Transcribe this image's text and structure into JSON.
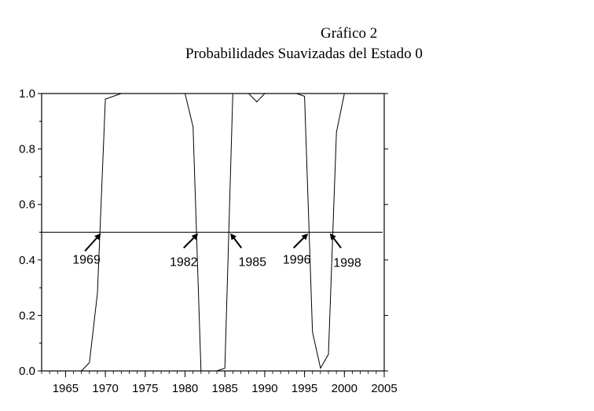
{
  "chart_data": {
    "type": "line",
    "title": "Gráfico 2",
    "subtitle": "Probabilidades Suavizadas del Estado 0",
    "xlabel": "",
    "ylabel": "",
    "xlim": [
      1962,
      2005
    ],
    "ylim": [
      0.0,
      1.0
    ],
    "x_ticks": [
      "1965",
      "1970",
      "1975",
      "1980",
      "1985",
      "1990",
      "1995",
      "2000",
      "2005"
    ],
    "y_ticks": [
      "0.0",
      "0.2",
      "0.4",
      "0.6",
      "0.8",
      "1.0"
    ],
    "grid": false,
    "legend": "none",
    "reference_line": {
      "y": 0.5
    },
    "series": [
      {
        "x": [
          1962,
          1963,
          1964,
          1965,
          1966,
          1967,
          1968,
          1969,
          1970,
          1971,
          1972,
          1973,
          1974,
          1975,
          1976,
          1977,
          1978,
          1979,
          1980,
          1981,
          1982,
          1983,
          1984,
          1985,
          1986,
          1987,
          1988,
          1989,
          1990,
          1991,
          1992,
          1993,
          1994,
          1995,
          1996,
          1997,
          1998,
          1999,
          2000,
          2001,
          2002,
          2003,
          2004,
          2005
        ],
        "values": [
          0.0,
          0.0,
          0.0,
          0.0,
          0.0,
          0.0,
          0.03,
          0.28,
          0.98,
          0.99,
          1.0,
          1.0,
          1.0,
          1.0,
          1.0,
          1.0,
          1.0,
          1.0,
          1.0,
          0.88,
          0.0,
          0.0,
          0.0,
          0.01,
          1.0,
          1.0,
          1.0,
          0.97,
          1.0,
          1.0,
          1.0,
          1.0,
          1.0,
          0.99,
          0.14,
          0.01,
          0.06,
          0.86,
          1.0,
          1.0,
          1.0,
          1.0,
          1.0,
          1.0
        ]
      }
    ],
    "annotations": [
      {
        "label": "1969",
        "x": 1969.6,
        "y": 0.5
      },
      {
        "label": "1982",
        "x": 1981.8,
        "y": 0.5
      },
      {
        "label": "1985",
        "x": 1985.5,
        "y": 0.5
      },
      {
        "label": "1996",
        "x": 1995.6,
        "y": 0.5
      },
      {
        "label": "1998",
        "x": 1998.0,
        "y": 0.5
      }
    ]
  }
}
